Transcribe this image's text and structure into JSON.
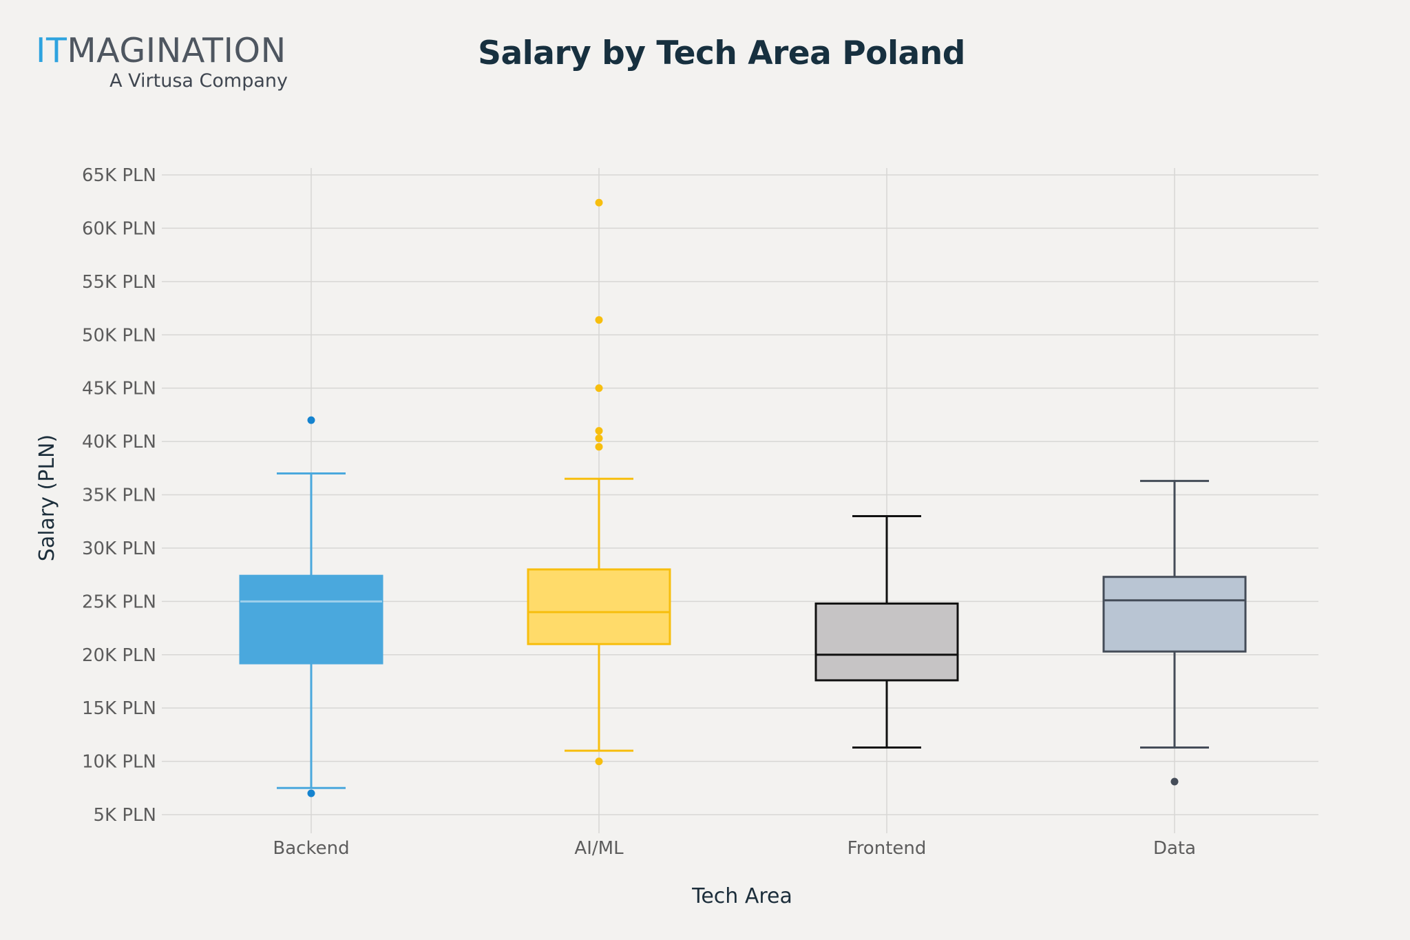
{
  "logo": {
    "wordmark_accent": "IT",
    "wordmark_rest": "MAGINATION",
    "tagline": "A Virtusa Company"
  },
  "chart_data": {
    "type": "box",
    "title": "Salary by Tech Area Poland",
    "xlabel": "Tech Area",
    "ylabel": "Salary (PLN)",
    "categories": [
      "Backend",
      "AI/ML",
      "Frontend",
      "Data"
    ],
    "ylim": [
      4000,
      66000
    ],
    "yticks": [
      5000,
      10000,
      15000,
      20000,
      25000,
      30000,
      35000,
      40000,
      45000,
      50000,
      55000,
      60000,
      65000
    ],
    "ytick_labels": [
      "5K PLN",
      "10K PLN",
      "15K PLN",
      "20K PLN",
      "25K PLN",
      "30K PLN",
      "35K PLN",
      "40K PLN",
      "45K PLN",
      "50K PLN",
      "55K PLN",
      "60K PLN",
      "65K PLN"
    ],
    "grid": true,
    "legend": "none",
    "series": [
      {
        "category": "Backend",
        "whisker_low": 7500,
        "q1": 19200,
        "median": 25000,
        "q3": 27400,
        "whisker_high": 37000,
        "outliers": [
          42000,
          7000
        ],
        "fill": "#4aa8dd",
        "stroke": "#4aa8dd",
        "median_color": "#9fd0ec",
        "outlier_color": "#1583cf"
      },
      {
        "category": "AI/ML",
        "whisker_low": 11000,
        "q1": 21000,
        "median": 24000,
        "q3": 28000,
        "whisker_high": 36500,
        "outliers": [
          62400,
          51400,
          45000,
          41000,
          40300,
          39500,
          10000
        ],
        "fill": "#ffdb6a",
        "stroke": "#f7be0e",
        "median_color": "#f7be0e",
        "outlier_color": "#f7be0e"
      },
      {
        "category": "Frontend",
        "whisker_low": 11300,
        "q1": 17600,
        "median": 20000,
        "q3": 24800,
        "whisker_high": 33000,
        "outliers": [],
        "fill": "#c6c4c5",
        "stroke": "#111111",
        "median_color": "#111111",
        "outlier_color": "#111111"
      },
      {
        "category": "Data",
        "whisker_low": 11300,
        "q1": 20300,
        "median": 25100,
        "q3": 27300,
        "whisker_high": 36300,
        "outliers": [
          8100
        ],
        "fill": "#b9c5d3",
        "stroke": "#444c58",
        "median_color": "#444c58",
        "outlier_color": "#444c58"
      }
    ]
  }
}
